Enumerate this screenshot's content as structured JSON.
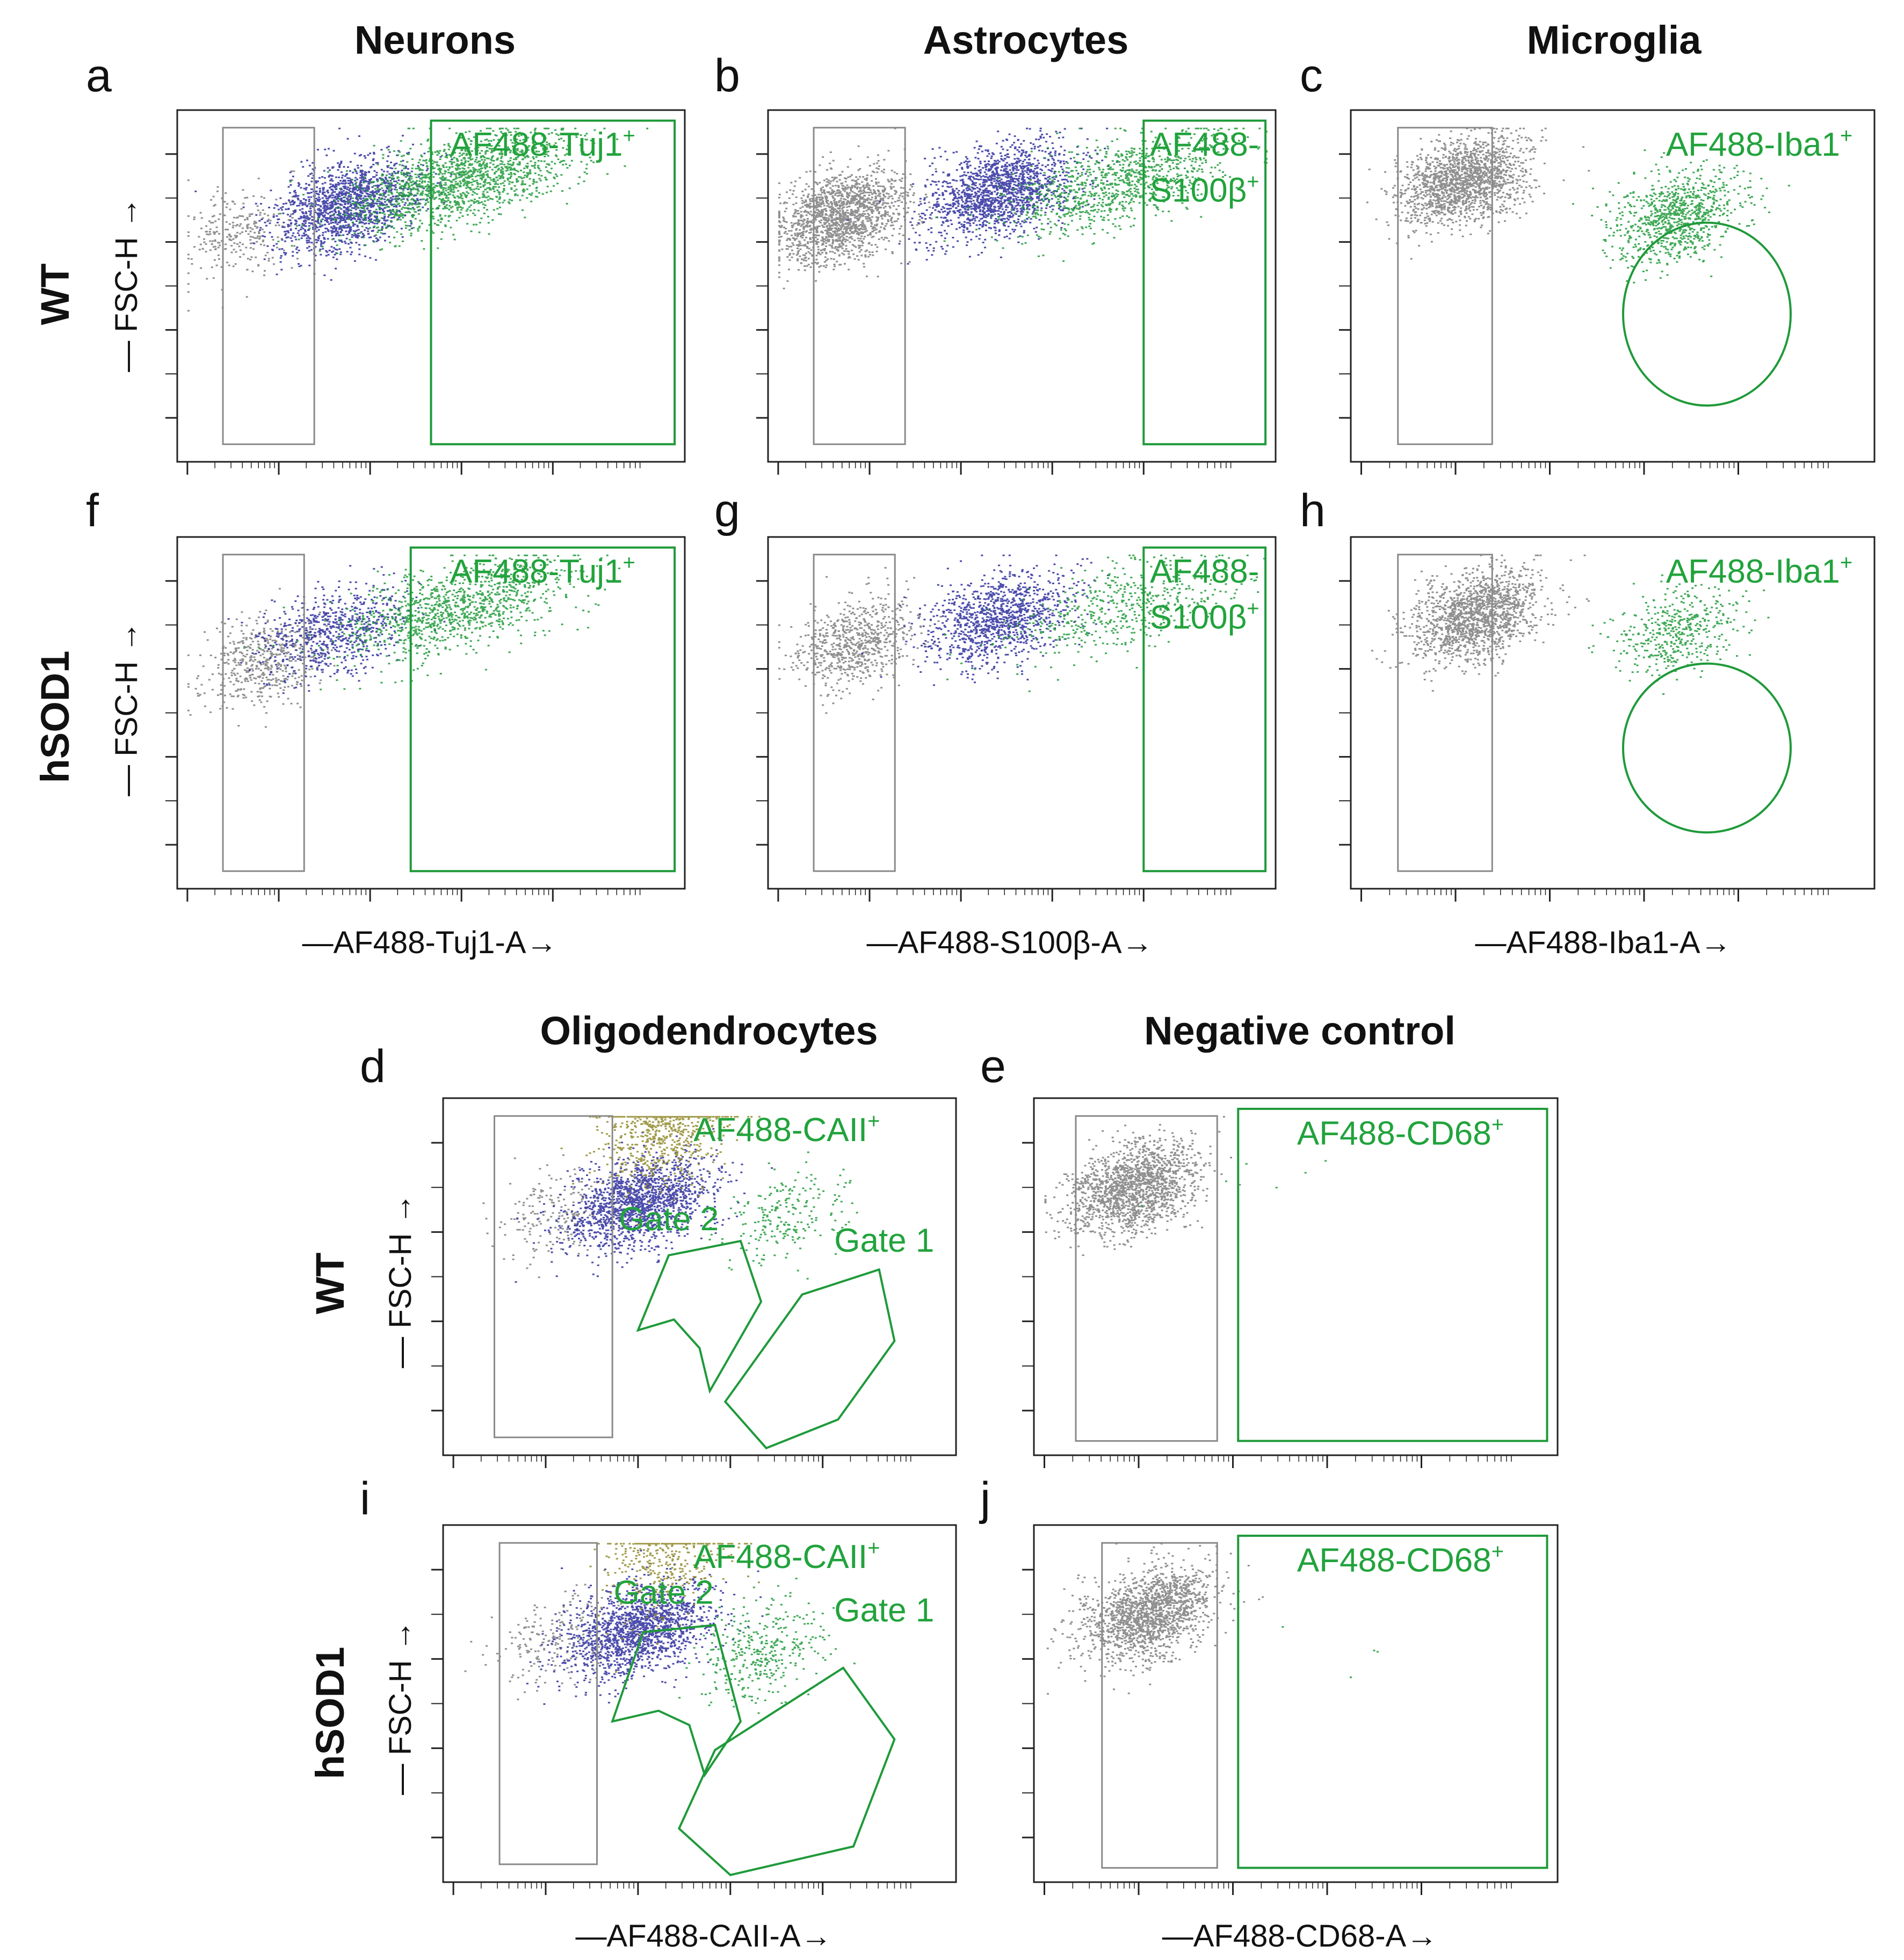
{
  "colors": {
    "positive": "#1f9a3a",
    "positive_dark": "#137a2a",
    "intermediate": "#2d2d9e",
    "negative": "#7d7d7d",
    "gate2": "#8f8a2a",
    "axis": "#222222"
  },
  "row_labels": {
    "top_wt": "WT",
    "top_hsod1": "hSOD1",
    "bottom_wt": "WT",
    "bottom_hsod1": "hSOD1"
  },
  "column_titles": {
    "neurons": "Neurons",
    "astrocytes": "Astrocytes",
    "microglia": "Microglia",
    "oligodendrocytes": "Oligodendrocytes",
    "negative_control": "Negative control"
  },
  "y_axis_label": "FSC-H",
  "x_axis_labels": {
    "tuj1": "AF488-Tuj1-A",
    "s100b": "AF488-S100β-A",
    "iba1": "AF488-Iba1-A",
    "caii": "AF488-CAII-A",
    "cd68": "AF488-CD68-A"
  },
  "chart_data": [
    {
      "id": "a",
      "type": "scatter",
      "letter": "a",
      "genotype": "WT",
      "cell_type": "Neurons",
      "xlabel": "AF488-Tuj1-A",
      "ylabel": "FSC-H",
      "x_scale": "log",
      "y_scale": "linear",
      "gates": [
        {
          "name": "negative",
          "label": ""
        },
        {
          "name": "positive",
          "label_main": "AF488-Tuj1",
          "label_sup": "+"
        }
      ],
      "populations": [
        {
          "name": "negative",
          "color": "grey",
          "center": [
            1.2,
            0.2
          ],
          "count": 260
        },
        {
          "name": "intermediate",
          "color": "blue",
          "center": [
            2.1,
            0.28
          ],
          "count": 1500
        },
        {
          "name": "positive",
          "color": "green",
          "center": [
            3.0,
            0.35
          ],
          "count": 2300
        }
      ]
    },
    {
      "id": "b",
      "type": "scatter",
      "letter": "b",
      "genotype": "WT",
      "cell_type": "Astrocytes",
      "xlabel": "AF488-S100β-A",
      "ylabel": "FSC-H",
      "x_scale": "log",
      "y_scale": "linear",
      "gates": [
        {
          "name": "negative",
          "label": ""
        },
        {
          "name": "positive",
          "label_line1": "AF488-",
          "label_line2": "S100β",
          "label_sup": "+"
        }
      ],
      "populations": [
        {
          "name": "negative",
          "color": "grey",
          "center": [
            1.3,
            0.25
          ],
          "count": 1600
        },
        {
          "name": "intermediate",
          "color": "blue",
          "center": [
            2.6,
            0.32
          ],
          "count": 2000
        },
        {
          "name": "positive",
          "color": "green",
          "center": [
            3.6,
            0.35
          ],
          "count": 1000
        }
      ]
    },
    {
      "id": "c",
      "type": "scatter",
      "letter": "c",
      "genotype": "WT",
      "cell_type": "Microglia",
      "xlabel": "AF488-Iba1-A",
      "ylabel": "FSC-H",
      "x_scale": "log",
      "y_scale": "linear",
      "gates": [
        {
          "name": "negative",
          "label": ""
        },
        {
          "name": "positive",
          "shape": "ellipse",
          "label_main": "AF488-Iba1",
          "label_sup": "+"
        }
      ],
      "populations": [
        {
          "name": "negative",
          "color": "grey",
          "center": [
            1.6,
            0.35
          ],
          "count": 2200
        },
        {
          "name": "positive",
          "color": "green",
          "center": [
            3.3,
            0.25
          ],
          "count": 900
        }
      ]
    },
    {
      "id": "f",
      "type": "scatter",
      "letter": "f",
      "genotype": "hSOD1",
      "cell_type": "Neurons",
      "xlabel": "AF488-Tuj1-A",
      "ylabel": "FSC-H",
      "x_scale": "log",
      "y_scale": "linear",
      "gates": [
        {
          "name": "negative",
          "label": ""
        },
        {
          "name": "positive",
          "label_main": "AF488-Tuj1",
          "label_sup": "+"
        }
      ],
      "populations": [
        {
          "name": "negative",
          "color": "grey",
          "center": [
            1.4,
            0.2
          ],
          "count": 500
        },
        {
          "name": "intermediate",
          "color": "blue",
          "center": [
            2.0,
            0.28
          ],
          "count": 700
        },
        {
          "name": "positive",
          "color": "green",
          "center": [
            3.0,
            0.35
          ],
          "count": 1100
        }
      ]
    },
    {
      "id": "g",
      "type": "scatter",
      "letter": "g",
      "genotype": "hSOD1",
      "cell_type": "Astrocytes",
      "xlabel": "AF488-S100β-A",
      "ylabel": "FSC-H",
      "x_scale": "log",
      "y_scale": "linear",
      "gates": [
        {
          "name": "negative",
          "label": ""
        },
        {
          "name": "positive",
          "label_line1": "AF488-",
          "label_line2": "S100β",
          "label_sup": "+"
        }
      ],
      "populations": [
        {
          "name": "negative",
          "color": "grey",
          "center": [
            1.4,
            0.25
          ],
          "count": 700
        },
        {
          "name": "intermediate",
          "color": "blue",
          "center": [
            2.6,
            0.32
          ],
          "count": 1100
        },
        {
          "name": "positive",
          "color": "green",
          "center": [
            3.6,
            0.35
          ],
          "count": 500
        }
      ]
    },
    {
      "id": "h",
      "type": "scatter",
      "letter": "h",
      "genotype": "hSOD1",
      "cell_type": "Microglia",
      "xlabel": "AF488-Iba1-A",
      "ylabel": "FSC-H",
      "x_scale": "log",
      "y_scale": "linear",
      "gates": [
        {
          "name": "negative",
          "label": ""
        },
        {
          "name": "positive",
          "shape": "ellipse",
          "label_main": "AF488-Iba1",
          "label_sup": "+"
        }
      ],
      "populations": [
        {
          "name": "negative",
          "color": "grey",
          "center": [
            1.7,
            0.33
          ],
          "count": 1500
        },
        {
          "name": "positive",
          "color": "green",
          "center": [
            3.3,
            0.28
          ],
          "count": 450
        }
      ]
    },
    {
      "id": "d",
      "type": "scatter",
      "letter": "d",
      "genotype": "WT",
      "cell_type": "Oligodendrocytes",
      "xlabel": "AF488-CAII-A",
      "ylabel": "FSC-H",
      "x_scale": "log",
      "y_scale": "linear",
      "gates": [
        {
          "name": "negative",
          "label": ""
        },
        {
          "name": "gate2",
          "label": "Gate 2"
        },
        {
          "name": "gate1",
          "label": "Gate 1"
        }
      ],
      "header_label_main": "AF488-CAII",
      "header_label_sup": "+",
      "populations": [
        {
          "name": "negative",
          "color": "grey",
          "center": [
            1.6,
            0.23
          ],
          "count": 200
        },
        {
          "name": "intermediate",
          "color": "blue",
          "center": [
            2.3,
            0.26
          ],
          "count": 2200
        },
        {
          "name": "gate2",
          "color": "olive",
          "center": [
            2.5,
            0.48
          ],
          "count": 800
        },
        {
          "name": "gate1",
          "color": "green",
          "center": [
            3.5,
            0.22
          ],
          "count": 220
        }
      ]
    },
    {
      "id": "e",
      "type": "scatter",
      "letter": "e",
      "genotype": "WT",
      "cell_type": "Negative control",
      "xlabel": "AF488-CD68-A",
      "ylabel": "FSC-H",
      "x_scale": "log",
      "y_scale": "linear",
      "gates": [
        {
          "name": "negative",
          "label": ""
        },
        {
          "name": "positive",
          "label_main": "AF488-CD68",
          "label_sup": "+"
        }
      ],
      "populations": [
        {
          "name": "negative",
          "color": "grey",
          "center": [
            1.5,
            0.3
          ],
          "count": 3000
        },
        {
          "name": "positive",
          "color": "green",
          "center": [
            2.6,
            0.35
          ],
          "count": 6
        }
      ]
    },
    {
      "id": "i",
      "type": "scatter",
      "letter": "i",
      "genotype": "hSOD1",
      "cell_type": "Oligodendrocytes",
      "xlabel": "AF488-CAII-A",
      "ylabel": "FSC-H",
      "x_scale": "log",
      "y_scale": "linear",
      "gates": [
        {
          "name": "negative",
          "label": ""
        },
        {
          "name": "gate2",
          "label": "Gate 2"
        },
        {
          "name": "gate1",
          "label": "Gate 1"
        }
      ],
      "header_label_main": "AF488-CAII",
      "header_label_sup": "+",
      "populations": [
        {
          "name": "negative",
          "color": "grey",
          "center": [
            1.6,
            0.23
          ],
          "count": 200
        },
        {
          "name": "intermediate",
          "color": "blue",
          "center": [
            2.3,
            0.26
          ],
          "count": 2000
        },
        {
          "name": "gate2",
          "color": "olive",
          "center": [
            2.5,
            0.45
          ],
          "count": 400
        },
        {
          "name": "gate1",
          "color": "green",
          "center": [
            3.3,
            0.2
          ],
          "count": 350
        }
      ]
    },
    {
      "id": "j",
      "type": "scatter",
      "letter": "j",
      "genotype": "hSOD1",
      "cell_type": "Negative control",
      "xlabel": "AF488-CD68-A",
      "ylabel": "FSC-H",
      "x_scale": "log",
      "y_scale": "linear",
      "gates": [
        {
          "name": "negative",
          "label": ""
        },
        {
          "name": "positive",
          "label_main": "AF488-CD68",
          "label_sup": "+"
        }
      ],
      "populations": [
        {
          "name": "negative",
          "color": "grey",
          "center": [
            1.6,
            0.3
          ],
          "count": 1700
        },
        {
          "name": "positive",
          "color": "green",
          "center": [
            3.0,
            0.2
          ],
          "count": 4
        }
      ]
    }
  ]
}
